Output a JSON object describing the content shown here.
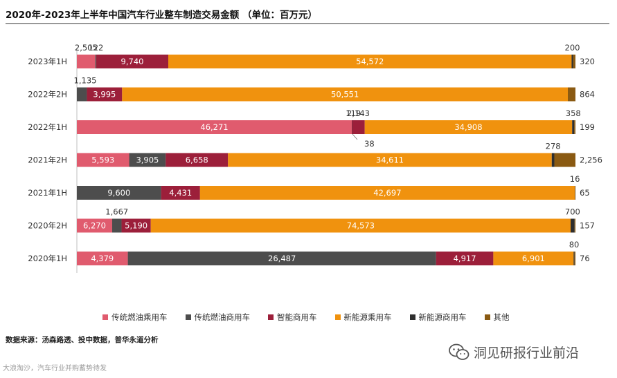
{
  "title": "2020年-2023年上半年中国汽车行业整车制造交易金额 （单位：百万元）",
  "source": "数据来源：汤森路透、投中数据，普华永道分析",
  "footer": "大浪淘沙，汽车行业并购蓄势待发",
  "watermark": {
    "text": "洞见研报行业前沿",
    "icon": "wechat-logo-icon"
  },
  "chart_data": {
    "type": "bar",
    "orientation": "horizontal",
    "stacked": true,
    "categories": [
      "2023年1H",
      "2022年2H",
      "2022年1H",
      "2021年2H",
      "2021年1H",
      "2020年2H",
      "2020年1H"
    ],
    "series": [
      {
        "name": "传统燃油乘用车",
        "color": "#e05b6e",
        "values": [
          2505,
          0,
          46271,
          5593,
          0,
          6270,
          4379
        ],
        "labels": [
          "2,505",
          "",
          "46,271",
          "5,593",
          "",
          "6,270",
          "4,379"
        ]
      },
      {
        "name": "传统燃油商用车",
        "color": "#4d4d4d",
        "values": [
          122,
          1135,
          38,
          3905,
          9600,
          1667,
          26487
        ],
        "labels": [
          "122",
          "1,135",
          "38",
          "3,905",
          "9,600",
          "1,667",
          "26,487"
        ]
      },
      {
        "name": "智能商用车",
        "color": "#9c1f3a",
        "values": [
          9740,
          3995,
          2143,
          6658,
          4431,
          5190,
          4917
        ],
        "labels": [
          "9,740",
          "3,995",
          "2,143",
          "6,658",
          "4,431",
          "5,190",
          "4,917"
        ]
      },
      {
        "name": "新能源乘用车",
        "color": "#f0920e",
        "values": [
          54572,
          50551,
          34908,
          34611,
          42697,
          74573,
          6901
        ],
        "labels": [
          "54,572",
          "50,551",
          "34,908",
          "34,611",
          "42,697",
          "74,573",
          "6,901"
        ]
      },
      {
        "name": "新能源商用车",
        "color": "#2e2e2e",
        "values": [
          200,
          0,
          358,
          278,
          16,
          700,
          80
        ],
        "labels": [
          "200",
          "",
          "358",
          "278",
          "16",
          "700",
          "80"
        ]
      },
      {
        "name": "其他",
        "color": "#8a5a12",
        "values": [
          320,
          864,
          199,
          2256,
          65,
          157,
          76
        ],
        "labels": [
          "320",
          "864",
          "199",
          "2,256",
          "65",
          "157",
          "76"
        ]
      }
    ],
    "extra_labels": [
      {
        "category": "2022年1H",
        "text": "119"
      }
    ],
    "legend": "bottom",
    "grid": false
  }
}
